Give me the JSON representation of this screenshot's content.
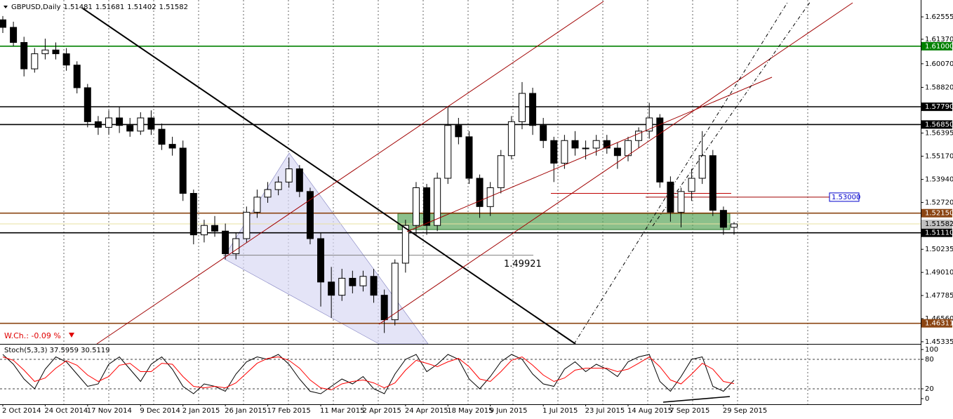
{
  "chart_data": [
    {
      "type": "candlestick",
      "title": "GBPUSD,Daily",
      "header_values": [
        1.51481,
        1.51681,
        1.51402,
        1.51582
      ],
      "categories": [
        "2 Oct 2014",
        null,
        null,
        null,
        "24 Oct 2014",
        null,
        null,
        null,
        "17 Nov 2014",
        null,
        null,
        null,
        null,
        "9 Dec 2014",
        null,
        null,
        null,
        "2 Jan 2015",
        null,
        null,
        null,
        "26 Jan 2015",
        null,
        null,
        null,
        "17 Feb 2015",
        null,
        null,
        null,
        null,
        "11 Mar 2015",
        null,
        null,
        null,
        "2 Apr 2015",
        null,
        null,
        null,
        "24 Apr 2015",
        null,
        null,
        null,
        "18 May 2015",
        null,
        null,
        null,
        "9 Jun 2015",
        null,
        null,
        null,
        null,
        "1 Jul 2015",
        null,
        null,
        null,
        "23 Jul 2015",
        null,
        null,
        null,
        "14 Aug 2015",
        null,
        null,
        null,
        "7 Sep 2015",
        null,
        null,
        null,
        null,
        "29 Sep 2015",
        null
      ],
      "open": [
        1.624,
        1.62,
        1.612,
        1.598,
        1.606,
        1.608,
        1.606,
        1.6,
        1.588,
        1.57,
        1.567,
        1.572,
        1.568,
        1.565,
        1.572,
        1.566,
        1.558,
        1.556,
        1.532,
        1.51,
        1.515,
        1.512,
        1.5,
        1.508,
        1.522,
        1.53,
        1.534,
        1.538,
        1.545,
        1.533,
        1.508,
        1.485,
        1.478,
        1.487,
        1.483,
        1.488,
        1.478,
        1.465,
        1.495,
        1.515,
        1.535,
        1.515,
        1.54,
        1.568,
        1.562,
        1.54,
        1.525,
        1.535,
        1.552,
        1.57,
        1.585,
        1.568,
        1.56,
        1.548,
        1.56,
        1.556,
        1.556,
        1.56,
        1.556,
        1.552,
        1.56,
        1.565,
        1.572,
        1.538,
        1.522,
        1.533,
        1.54,
        1.552,
        1.523,
        1.514
      ],
      "high": [
        1.626,
        1.623,
        1.615,
        1.609,
        1.614,
        1.612,
        1.609,
        1.602,
        1.59,
        1.573,
        1.576,
        1.578,
        1.572,
        1.575,
        1.576,
        1.569,
        1.562,
        1.56,
        1.534,
        1.518,
        1.52,
        1.516,
        1.511,
        1.525,
        1.534,
        1.538,
        1.541,
        1.551,
        1.547,
        1.535,
        1.511,
        1.493,
        1.492,
        1.491,
        1.491,
        1.492,
        1.481,
        1.497,
        1.518,
        1.538,
        1.537,
        1.543,
        1.578,
        1.572,
        1.565,
        1.542,
        1.538,
        1.555,
        1.573,
        1.591,
        1.588,
        1.572,
        1.562,
        1.563,
        1.565,
        1.56,
        1.563,
        1.563,
        1.559,
        1.562,
        1.567,
        1.58,
        1.574,
        1.541,
        1.535,
        1.545,
        1.565,
        1.555,
        1.525,
        1.5168
      ],
      "low": [
        1.617,
        1.61,
        1.594,
        1.596,
        1.603,
        1.603,
        1.597,
        1.585,
        1.567,
        1.563,
        1.563,
        1.564,
        1.562,
        1.563,
        1.563,
        1.555,
        1.552,
        1.528,
        1.505,
        1.506,
        1.509,
        1.497,
        1.497,
        1.506,
        1.519,
        1.527,
        1.531,
        1.535,
        1.53,
        1.505,
        1.472,
        1.466,
        1.475,
        1.479,
        1.48,
        1.474,
        1.458,
        1.462,
        1.49,
        1.51,
        1.51,
        1.512,
        1.537,
        1.558,
        1.537,
        1.519,
        1.52,
        1.532,
        1.55,
        1.566,
        1.563,
        1.556,
        1.538,
        1.545,
        1.552,
        1.55,
        1.552,
        1.553,
        1.545,
        1.549,
        1.556,
        1.561,
        1.535,
        1.517,
        1.514,
        1.528,
        1.537,
        1.52,
        1.51,
        1.5101
      ],
      "close": [
        1.62,
        1.612,
        1.598,
        1.606,
        1.608,
        1.606,
        1.6,
        1.588,
        1.57,
        1.567,
        1.572,
        1.568,
        1.565,
        1.572,
        1.566,
        1.558,
        1.556,
        1.532,
        1.51,
        1.515,
        1.512,
        1.5,
        1.508,
        1.522,
        1.53,
        1.534,
        1.538,
        1.545,
        1.533,
        1.508,
        1.485,
        1.478,
        1.487,
        1.483,
        1.488,
        1.478,
        1.465,
        1.495,
        1.515,
        1.535,
        1.515,
        1.54,
        1.568,
        1.562,
        1.54,
        1.525,
        1.535,
        1.552,
        1.57,
        1.585,
        1.568,
        1.56,
        1.548,
        1.56,
        1.556,
        1.556,
        1.56,
        1.556,
        1.552,
        1.56,
        1.565,
        1.572,
        1.538,
        1.522,
        1.533,
        1.54,
        1.552,
        1.523,
        1.514,
        1.51582
      ],
      "up_color": "#ffffff",
      "down_color": "#000000",
      "ylim": [
        1.4522,
        1.6345
      ],
      "yticks": [
        1.62555,
        {
          "value": 1.6137,
          "label": "1.61370"
        },
        {
          "value": 1.6007,
          "label": "1.60070"
        },
        {
          "value": 1.5882,
          "label": "1.58820"
        },
        1.56395,
        {
          "value": 1.5517,
          "label": "1.55170"
        },
        {
          "value": 1.5394,
          "label": "1.53940"
        },
        {
          "value": 1.5272,
          "label": "1.52720"
        },
        1.50235,
        {
          "value": 1.4901,
          "label": "1.49010"
        },
        1.47785,
        {
          "value": 1.4656,
          "label": "1.46560"
        },
        1.45335
      ],
      "levels": [
        {
          "value": 1.61,
          "label": "1.61000",
          "color": "#008000"
        },
        {
          "value": 1.5779,
          "label": "1.57790",
          "color": "#000000"
        },
        {
          "value": 1.5685,
          "label": "1.56850",
          "color": "#000000"
        },
        {
          "value": 1.5215,
          "label": "1.52150",
          "color": "#8b4513"
        },
        {
          "value": 1.51582,
          "color": "#c0c0c0"
        },
        {
          "value": 1.5111,
          "label": "1.51110",
          "color": "#000000"
        },
        {
          "value": 1.46311,
          "color": "#8b4513"
        }
      ],
      "zone": [
        1.5213,
        1.5128
      ],
      "marked_levels": [
        {
          "value": 1.53,
          "label": "1.53000",
          "color": "#0000cc"
        },
        {
          "value": 1.49921,
          "color": "#808080"
        }
      ],
      "support_line": 1.532,
      "annotation": "W.Ch.: -0.09 %"
    },
    {
      "type": "line",
      "title": "Stoch(5,3,3) 37.5959 30.5119",
      "series": [
        {
          "name": "Main",
          "color": "#000000",
          "values": [
            90,
            70,
            40,
            20,
            60,
            85,
            75,
            50,
            25,
            30,
            70,
            85,
            60,
            35,
            70,
            85,
            60,
            25,
            10,
            30,
            25,
            15,
            50,
            75,
            85,
            80,
            90,
            70,
            40,
            15,
            10,
            25,
            40,
            30,
            45,
            20,
            10,
            50,
            80,
            90,
            55,
            70,
            90,
            80,
            40,
            20,
            45,
            75,
            90,
            80,
            50,
            30,
            25,
            60,
            75,
            55,
            70,
            60,
            45,
            75,
            85,
            90,
            35,
            15,
            45,
            80,
            85,
            25,
            15,
            37.5959
          ]
        },
        {
          "name": "Signal",
          "color": "#ff0000",
          "values": [
            85,
            78,
            58,
            35,
            42,
            62,
            77,
            68,
            48,
            35,
            45,
            68,
            72,
            55,
            55,
            72,
            70,
            45,
            25,
            22,
            25,
            22,
            32,
            52,
            72,
            82,
            85,
            78,
            62,
            38,
            22,
            18,
            30,
            35,
            38,
            32,
            22,
            32,
            58,
            78,
            72,
            65,
            75,
            82,
            65,
            40,
            35,
            55,
            78,
            85,
            68,
            48,
            35,
            42,
            58,
            62,
            62,
            62,
            55,
            60,
            72,
            85,
            65,
            38,
            30,
            50,
            72,
            60,
            35,
            30.5119
          ]
        }
      ],
      "ylim": [
        0,
        100
      ],
      "yticks": [
        0,
        20,
        80,
        100
      ],
      "levels": [
        20,
        80
      ]
    }
  ]
}
